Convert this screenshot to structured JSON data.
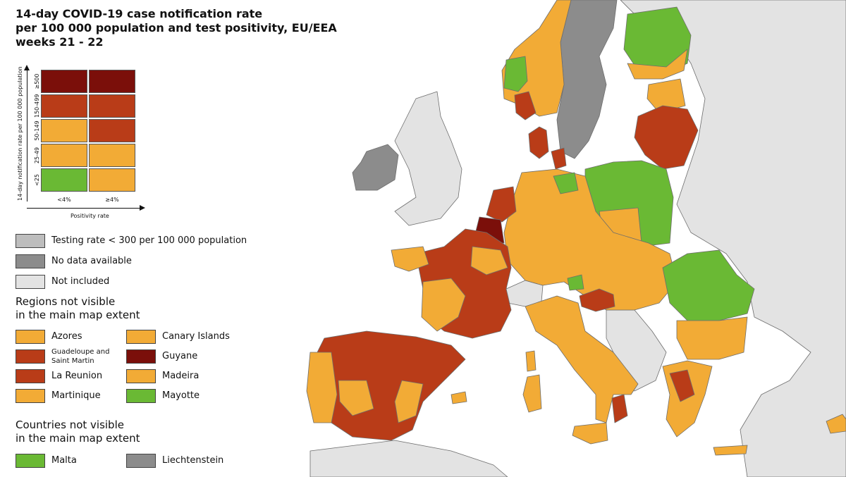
{
  "title": {
    "line1": "14-day COVID-19 case notification rate",
    "line2": "per 100 000 population and test positivity, EU/EEA",
    "line3": "weeks 21 - 22"
  },
  "matrix": {
    "y_axis_label": "14-day notification rate per 100 000 population",
    "x_axis_label": "Positivity rate",
    "rows": [
      "≥500",
      "150-499",
      "50-149",
      "25-49",
      "<25"
    ],
    "cols": [
      "<4%",
      "≥4%"
    ],
    "colors": [
      [
        "#7b0f0a",
        "#7b0f0a"
      ],
      [
        "#b93c18",
        "#b93c18"
      ],
      [
        "#f2ab36",
        "#b93c18"
      ],
      [
        "#f2ab36",
        "#f2ab36"
      ],
      [
        "#6ab934",
        "#f2ab36"
      ]
    ]
  },
  "colors": {
    "dark_red": "#7b0f0a",
    "red": "#b93c18",
    "orange": "#f2ab36",
    "green": "#6ab934",
    "light_grey": "#bdbdbd",
    "dark_grey": "#8c8c8c",
    "not_included": "#e3e3e3",
    "sea": "#ffffff"
  },
  "legend": {
    "testing": "Testing rate < 300 per 100 000 population",
    "no_data": "No data available",
    "not_included": "Not included"
  },
  "regions_section": {
    "line1": "Regions not visible",
    "line2": "in the main map extent"
  },
  "regions": [
    {
      "name": "Azores",
      "color": "#f2ab36"
    },
    {
      "name": "Canary Islands",
      "color": "#f2ab36"
    },
    {
      "name": "Guadeloupe and Saint Martin",
      "color": "#b93c18"
    },
    {
      "name": "Guyane",
      "color": "#7b0f0a"
    },
    {
      "name": "La Reunion",
      "color": "#b93c18"
    },
    {
      "name": "Madeira",
      "color": "#f2ab36"
    },
    {
      "name": "Martinique",
      "color": "#f2ab36"
    },
    {
      "name": "Mayotte",
      "color": "#6ab934"
    }
  ],
  "countries_section": {
    "line1": "Countries not visible",
    "line2": "in the main map extent"
  },
  "countries": [
    {
      "name": "Malta",
      "color": "#6ab934"
    },
    {
      "name": "Liechtenstein",
      "color": "#8c8c8c"
    }
  ]
}
